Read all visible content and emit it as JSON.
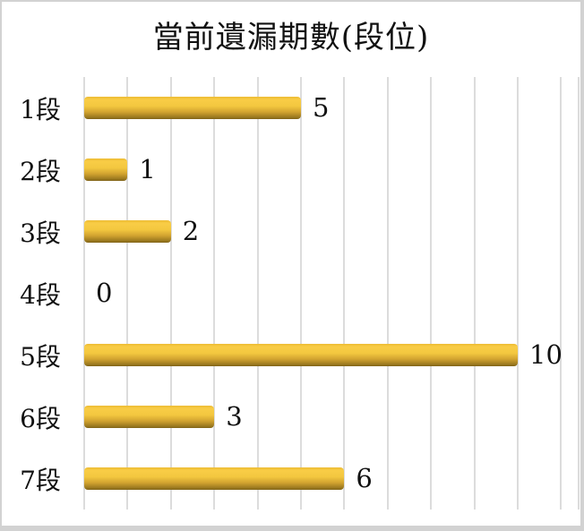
{
  "chart_data": {
    "type": "bar",
    "orientation": "horizontal",
    "title": "當前遺漏期數(段位)",
    "categories": [
      "1段",
      "2段",
      "3段",
      "4段",
      "5段",
      "6段",
      "7段"
    ],
    "values": [
      5,
      1,
      2,
      0,
      10,
      3,
      6
    ],
    "data_labels": [
      "5",
      "1",
      "2",
      "0",
      "10",
      "3",
      "6"
    ],
    "xlim": [
      0,
      11.4
    ],
    "gridline_step": 1,
    "gridline_count": 12,
    "legend": "none",
    "grid": "vertical-only",
    "colors": {
      "bar_top": "#f9cd46",
      "bar_bottom": "#7f6217",
      "gridline": "#dcdcdc",
      "text": "#111111",
      "background": "#ffffff",
      "frame_border": "#d2d2d2"
    }
  }
}
